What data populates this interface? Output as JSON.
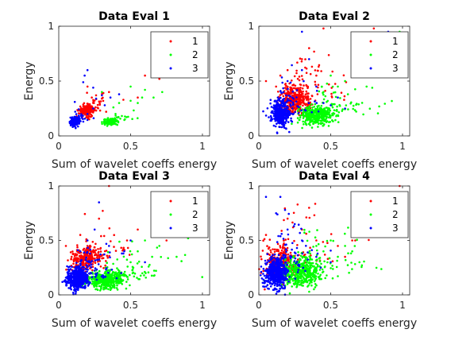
{
  "chart_data": [
    {
      "type": "scatter",
      "title": "Data Eval 1",
      "xlabel": "Sum of wavelet coeffs energy",
      "ylabel": "Energy",
      "xlim": [
        0,
        1.05
      ],
      "ylim": [
        0,
        1
      ],
      "xticks": [
        "0",
        "0.5",
        "1"
      ],
      "yticks": [
        "0",
        "0.5",
        "1"
      ],
      "grid": false,
      "legend": "top-right",
      "series": [
        {
          "name": "1",
          "color": "#ff0000",
          "center": [
            0.19,
            0.23
          ],
          "spread": [
            0.025,
            0.025
          ],
          "count": 220,
          "extra": [
            [
              0.24,
              0.3
            ],
            [
              0.3,
              0.34
            ],
            [
              0.35,
              0.4
            ],
            [
              0.2,
              0.45
            ],
            [
              0.55,
              0.35
            ],
            [
              0.6,
              0.55
            ],
            [
              0.7,
              0.52
            ],
            [
              0.45,
              0.33
            ],
            [
              0.26,
              0.37
            ],
            [
              0.33,
              0.22
            ]
          ]
        },
        {
          "name": "2",
          "color": "#00ff00",
          "center": [
            0.36,
            0.13
          ],
          "spread": [
            0.025,
            0.015
          ],
          "count": 130,
          "extra": [
            [
              0.42,
              0.3
            ],
            [
              0.5,
              0.32
            ],
            [
              0.55,
              0.3
            ],
            [
              0.6,
              0.42
            ],
            [
              0.72,
              0.4
            ],
            [
              0.82,
              0.55
            ],
            [
              0.95,
              0.62
            ],
            [
              0.5,
              0.45
            ],
            [
              0.38,
              0.26
            ],
            [
              0.58,
              0.35
            ],
            [
              0.66,
              0.35
            ],
            [
              0.3,
              0.4
            ]
          ]
        },
        {
          "name": "3",
          "color": "#0000ff",
          "center": [
            0.11,
            0.13
          ],
          "spread": [
            0.015,
            0.02
          ],
          "count": 180,
          "extra": [
            [
              0.17,
              0.49
            ],
            [
              0.18,
              0.55
            ],
            [
              0.24,
              0.44
            ],
            [
              0.26,
              0.34
            ],
            [
              0.3,
              0.37
            ],
            [
              0.36,
              0.35
            ],
            [
              0.42,
              0.38
            ],
            [
              0.82,
              0.72
            ],
            [
              0.2,
              0.6
            ],
            [
              0.24,
              0.25
            ],
            [
              0.32,
              0.28
            ],
            [
              0.2,
              0.2
            ]
          ]
        }
      ]
    },
    {
      "type": "scatter",
      "title": "Data Eval 2",
      "xlabel": "Sum of wavelet coeffs energy",
      "ylabel": "Energy",
      "xlim": [
        0,
        1.05
      ],
      "ylim": [
        0,
        1
      ],
      "xticks": [
        "0",
        "0.5",
        "1"
      ],
      "yticks": [
        "0",
        "0.5",
        "1"
      ],
      "grid": false,
      "legend": "top-right",
      "series": [
        {
          "name": "1",
          "color": "#ff0000",
          "center": [
            0.25,
            0.32
          ],
          "spread": [
            0.05,
            0.07
          ],
          "count": 380,
          "extra": [
            [
              0.15,
              0.55
            ],
            [
              0.2,
              0.6
            ],
            [
              0.3,
              0.7
            ],
            [
              0.35,
              0.8
            ],
            [
              0.05,
              0.5
            ],
            [
              0.12,
              0.45
            ],
            [
              0.45,
              0.98
            ],
            [
              0.8,
              0.98
            ],
            [
              0.4,
              0.55
            ]
          ]
        },
        {
          "name": "2",
          "color": "#00ff00",
          "center": [
            0.4,
            0.19
          ],
          "spread": [
            0.06,
            0.04
          ],
          "count": 380,
          "extra": [
            [
              0.55,
              0.45
            ],
            [
              0.6,
              0.5
            ],
            [
              0.65,
              0.6
            ],
            [
              0.7,
              0.55
            ],
            [
              0.5,
              0.55
            ],
            [
              0.75,
              0.45
            ],
            [
              0.98,
              0.95
            ],
            [
              0.45,
              0.4
            ],
            [
              0.62,
              0.38
            ]
          ]
        },
        {
          "name": "3",
          "color": "#0000ff",
          "center": [
            0.15,
            0.2
          ],
          "spread": [
            0.03,
            0.06
          ],
          "count": 380,
          "extra": [
            [
              0.3,
              0.6
            ],
            [
              0.4,
              0.45
            ],
            [
              0.35,
              0.7
            ],
            [
              0.45,
              0.3
            ],
            [
              0.55,
              0.35
            ],
            [
              0.5,
              0.28
            ],
            [
              0.2,
              0.5
            ],
            [
              0.3,
              0.95
            ],
            [
              0.9,
              0.95
            ],
            [
              0.6,
              0.25
            ]
          ]
        }
      ]
    },
    {
      "type": "scatter",
      "title": "Data Eval 3",
      "xlabel": "Sum of wavelet coeffs energy",
      "ylabel": "Energy",
      "xlim": [
        0,
        1.05
      ],
      "ylim": [
        0,
        1
      ],
      "xticks": [
        "0",
        "0.5",
        "1"
      ],
      "yticks": [
        "0",
        "0.5",
        "1"
      ],
      "grid": false,
      "legend": "top-right",
      "series": [
        {
          "name": "1",
          "color": "#ff0000",
          "center": [
            0.18,
            0.33
          ],
          "spread": [
            0.05,
            0.06
          ],
          "count": 260,
          "extra": [
            [
              0.35,
              1.0
            ],
            [
              0.28,
              0.7
            ],
            [
              0.15,
              0.55
            ],
            [
              0.55,
              0.6
            ],
            [
              0.65,
              0.55
            ],
            [
              0.75,
              0.5
            ],
            [
              1.0,
              0.57
            ],
            [
              0.45,
              0.42
            ],
            [
              0.05,
              0.45
            ]
          ]
        },
        {
          "name": "2",
          "color": "#00ff00",
          "center": [
            0.33,
            0.14
          ],
          "spread": [
            0.07,
            0.04
          ],
          "count": 450,
          "extra": [
            [
              0.55,
              0.4
            ],
            [
              0.6,
              0.5
            ],
            [
              0.7,
              0.45
            ],
            [
              0.9,
              0.52
            ],
            [
              0.65,
              0.35
            ],
            [
              0.5,
              0.3
            ],
            [
              0.82,
              0.35
            ]
          ]
        },
        {
          "name": "3",
          "color": "#0000ff",
          "center": [
            0.13,
            0.15
          ],
          "spread": [
            0.04,
            0.05
          ],
          "count": 480,
          "extra": [
            [
              0.28,
              0.85
            ],
            [
              0.25,
              0.6
            ],
            [
              0.35,
              0.45
            ],
            [
              0.45,
              0.38
            ],
            [
              0.2,
              0.5
            ],
            [
              0.5,
              0.5
            ],
            [
              0.6,
              0.3
            ],
            [
              0.15,
              0.4
            ]
          ]
        }
      ]
    },
    {
      "type": "scatter",
      "title": "Data Eval 4",
      "xlabel": "Sum of wavelet coeffs energy",
      "ylabel": "Energy",
      "xlim": [
        0,
        1.05
      ],
      "ylim": [
        0,
        1
      ],
      "xticks": [
        "0",
        "0.5",
        "1"
      ],
      "yticks": [
        "0",
        "0.5",
        "1"
      ],
      "grid": false,
      "legend": "top-right",
      "series": [
        {
          "name": "1",
          "color": "#ff0000",
          "center": [
            0.15,
            0.3
          ],
          "spread": [
            0.06,
            0.08
          ],
          "count": 250,
          "extra": [
            [
              0.98,
              1.0
            ],
            [
              0.3,
              0.6
            ],
            [
              0.4,
              0.5
            ],
            [
              0.55,
              0.45
            ],
            [
              0.65,
              0.5
            ],
            [
              0.7,
              0.6
            ],
            [
              0.2,
              0.7
            ],
            [
              0.35,
              0.8
            ],
            [
              0.6,
              0.35
            ],
            [
              0.05,
              0.55
            ]
          ]
        },
        {
          "name": "2",
          "color": "#00ff00",
          "center": [
            0.3,
            0.2
          ],
          "spread": [
            0.07,
            0.07
          ],
          "count": 450,
          "extra": [
            [
              0.45,
              0.4
            ],
            [
              0.5,
              0.5
            ],
            [
              0.6,
              0.45
            ],
            [
              0.65,
              0.4
            ],
            [
              0.55,
              0.35
            ],
            [
              0.4,
              0.45
            ],
            [
              0.7,
              0.3
            ]
          ]
        },
        {
          "name": "3",
          "color": "#0000ff",
          "center": [
            0.12,
            0.2
          ],
          "spread": [
            0.04,
            0.07
          ],
          "count": 480,
          "extra": [
            [
              0.05,
              0.9
            ],
            [
              0.15,
              0.9
            ],
            [
              0.12,
              0.75
            ],
            [
              0.2,
              0.6
            ],
            [
              0.3,
              0.5
            ],
            [
              0.4,
              0.35
            ],
            [
              0.25,
              0.65
            ],
            [
              0.5,
              0.3
            ]
          ]
        }
      ]
    }
  ]
}
